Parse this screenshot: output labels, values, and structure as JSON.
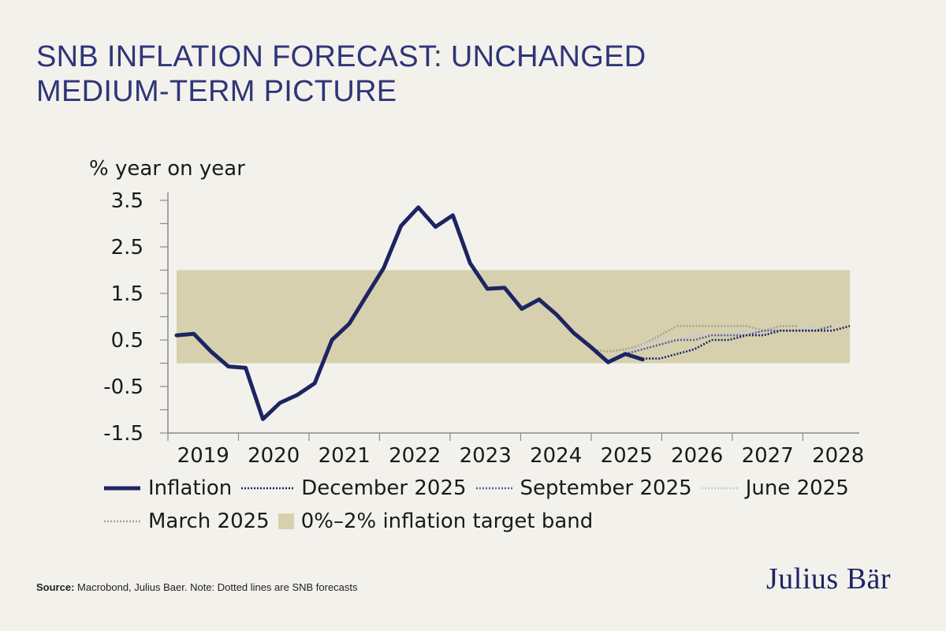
{
  "title": {
    "line1": "SNB INFLATION FORECAST: UNCHANGED",
    "line2": "MEDIUM-TERM PICTURE"
  },
  "chart_data": {
    "type": "line",
    "ylabel": "% year on year",
    "ylim": [
      -1.5,
      3.5
    ],
    "xlim": [
      2019.0,
      2028.75
    ],
    "y_ticks": [
      3.5,
      2.5,
      1.5,
      0.5,
      -0.5,
      -1.5
    ],
    "y_tick_labels": [
      "3.5",
      "2.5",
      "1.5",
      "0.5",
      "-0.5",
      "-1.5"
    ],
    "x_tick_labels": [
      "2019",
      "2020",
      "2021",
      "2022",
      "2023",
      "2024",
      "2025",
      "2026",
      "2027",
      "2028"
    ],
    "band": {
      "name": "0%–2% inflation target band",
      "y0": 0,
      "y1": 2,
      "color": "#d6d0ae"
    },
    "series": [
      {
        "name": "Inflation",
        "style": "solid",
        "color": "#1d2463",
        "x": [
          2019.0,
          2019.25,
          2019.5,
          2019.75,
          2020.0,
          2020.25,
          2020.5,
          2020.75,
          2021.0,
          2021.25,
          2021.5,
          2021.75,
          2022.0,
          2022.25,
          2022.5,
          2022.75,
          2023.0,
          2023.25,
          2023.5,
          2023.75,
          2024.0,
          2024.25,
          2024.5,
          2024.75,
          2025.0,
          2025.25,
          2025.5,
          2025.75
        ],
        "values": [
          0.6,
          0.63,
          0.25,
          -0.07,
          -0.1,
          -1.2,
          -0.85,
          -0.68,
          -0.43,
          0.5,
          0.85,
          1.45,
          2.05,
          2.95,
          3.35,
          2.93,
          3.18,
          2.15,
          1.6,
          1.62,
          1.17,
          1.37,
          1.05,
          0.65,
          0.35,
          0.02,
          0.2,
          0.08
        ]
      },
      {
        "name": "December 2025",
        "style": "dotted",
        "color": "#1d2463",
        "x": [
          2025.75,
          2026.0,
          2026.25,
          2026.5,
          2026.75,
          2027.0,
          2027.25,
          2027.5,
          2027.75,
          2028.0,
          2028.25,
          2028.5,
          2028.75
        ],
        "values": [
          0.1,
          0.1,
          0.2,
          0.3,
          0.5,
          0.5,
          0.6,
          0.6,
          0.7,
          0.7,
          0.7,
          0.7,
          0.8
        ]
      },
      {
        "name": "September 2025",
        "style": "dotted",
        "color": "#5a5f97",
        "x": [
          2025.5,
          2025.75,
          2026.0,
          2026.25,
          2026.5,
          2026.75,
          2027.0,
          2027.25,
          2027.5,
          2027.75,
          2028.0,
          2028.25,
          2028.5
        ],
        "values": [
          0.2,
          0.3,
          0.4,
          0.5,
          0.5,
          0.6,
          0.6,
          0.6,
          0.7,
          0.7,
          0.7,
          0.7,
          0.8
        ]
      },
      {
        "name": "June 2025",
        "style": "dotted",
        "color": "#c4c7dd",
        "x": [
          2025.25,
          2025.5,
          2025.75,
          2026.0,
          2026.25,
          2026.5,
          2026.75,
          2027.0,
          2027.25,
          2027.5,
          2027.75,
          2028.0,
          2028.25
        ],
        "values": [
          0.1,
          0.2,
          0.4,
          0.5,
          0.5,
          0.6,
          0.6,
          0.6,
          0.7,
          0.7,
          0.7,
          0.7,
          0.8
        ]
      },
      {
        "name": "March 2025",
        "style": "dotted",
        "color": "#a9a483",
        "x": [
          2025.0,
          2025.25,
          2025.5,
          2025.75,
          2026.0,
          2026.25,
          2026.5,
          2026.75,
          2027.0,
          2027.25,
          2027.5,
          2027.75,
          2028.0
        ],
        "values": [
          0.3,
          0.25,
          0.3,
          0.4,
          0.6,
          0.8,
          0.8,
          0.8,
          0.8,
          0.8,
          0.7,
          0.8,
          0.8
        ]
      }
    ]
  },
  "legend": {
    "items": [
      "Inflation",
      "December 2025",
      "September 2025",
      "June 2025",
      "March 2025",
      "0%–2% inflation target band"
    ]
  },
  "source": {
    "label": "Source:",
    "text": " Macrobond, Julius Baer. Note: Dotted lines are SNB forecasts"
  },
  "logo": {
    "text": "Julius Bär"
  }
}
